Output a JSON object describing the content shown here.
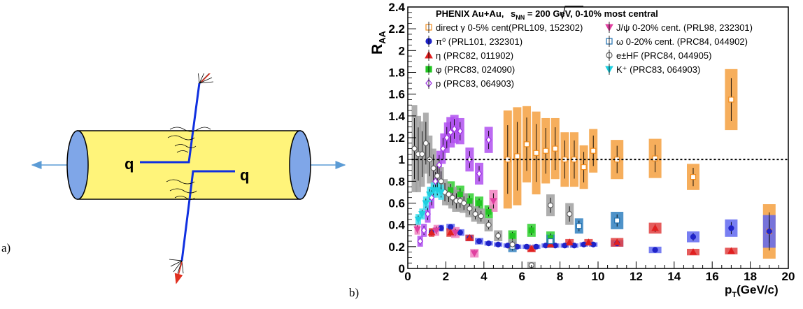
{
  "panel_labels": {
    "a": "a)",
    "b": "b)"
  },
  "diagram": {
    "quark_left": "q",
    "quark_right": "q"
  },
  "chart_data": {
    "type": "scatter",
    "title_prefix": "PHENIX   Au+Au,  ",
    "title_sqrt": "s",
    "title_sub": "NN",
    "title_suffix": " = 200 GeV, 0-10% most central",
    "ylabel_main": "R",
    "ylabel_sub": "AA",
    "xlabel_main": "p",
    "xlabel_sub": "T",
    "xlabel_unit": "(GeV/c)",
    "xlim": [
      0,
      20
    ],
    "ylim": [
      0,
      2.4
    ],
    "xticks": [
      "0",
      "2",
      "4",
      "6",
      "8",
      "10",
      "12",
      "14",
      "16",
      "18",
      "20"
    ],
    "yticks": [
      "0",
      "0.2",
      "0.4",
      "0.6",
      "0.8",
      "1",
      "1.2",
      "1.4",
      "1.6",
      "1.8",
      "2",
      "2.2",
      "2.4"
    ],
    "legend": [
      {
        "label": "direct γ 0-5% cent(PRL109, 152302)",
        "color": "#f08c1e",
        "marker": "open-square"
      },
      {
        "label": "π⁰ (PRL101, 232301)",
        "color": "#1f23c8",
        "marker": "circle"
      },
      {
        "label": "η (PRC82, 011902)",
        "color": "#e02020",
        "marker": "triangle-up"
      },
      {
        "label": "φ (PRC83, 024090)",
        "color": "#22c422",
        "marker": "square"
      },
      {
        "label": "p (PRC83, 064903)",
        "color": "#9b30e0",
        "marker": "open-diamond"
      },
      {
        "label": "J/ψ 0-20% cent. (PRL98, 232301)",
        "color": "#e040a0",
        "marker": "triangle-down"
      },
      {
        "label": "ω 0-20% cent. (PRC84, 044902)",
        "color": "#2070b0",
        "marker": "open-square"
      },
      {
        "label": "e±HF (PRC84, 044905)",
        "color": "#606060",
        "marker": "open-circle"
      },
      {
        "label": "K⁺ (PRC83, 064903)",
        "color": "#20d0e0",
        "marker": "triangle-down"
      }
    ],
    "reference_line_y": 1,
    "series": [
      {
        "name": "direct γ",
        "color": "#f08c1e",
        "band": "#f5a040",
        "x": [
          5.25,
          5.75,
          6.25,
          6.75,
          7.25,
          7.75,
          8.25,
          8.75,
          9.25,
          9.75,
          11,
          13,
          15,
          17,
          19
        ],
        "y": [
          1.0,
          1.03,
          1.14,
          1.06,
          1.08,
          1.1,
          1.0,
          1.0,
          0.93,
          1.08,
          1.0,
          1.01,
          0.84,
          1.55,
          0.34
        ],
        "sys": [
          0.45,
          0.45,
          0.35,
          0.38,
          0.3,
          0.28,
          0.25,
          0.25,
          0.2,
          0.2,
          0.18,
          0.18,
          0.12,
          0.28,
          0.25
        ]
      },
      {
        "name": "π⁰",
        "color": "#1f23c8",
        "band": "#6068f0",
        "x": [
          1.25,
          1.75,
          2.25,
          2.75,
          3.25,
          3.75,
          4.25,
          4.75,
          5.25,
          5.75,
          6.25,
          6.75,
          7.25,
          7.75,
          8.25,
          8.75,
          9.25,
          9.75,
          11,
          13,
          15,
          17,
          19
        ],
        "y": [
          0.33,
          0.37,
          0.38,
          0.33,
          0.28,
          0.25,
          0.23,
          0.22,
          0.21,
          0.2,
          0.2,
          0.2,
          0.21,
          0.21,
          0.21,
          0.21,
          0.22,
          0.22,
          0.23,
          0.17,
          0.29,
          0.37,
          0.34
        ],
        "sys": [
          0.03,
          0.03,
          0.03,
          0.03,
          0.03,
          0.03,
          0.02,
          0.02,
          0.02,
          0.02,
          0.02,
          0.02,
          0.02,
          0.02,
          0.02,
          0.02,
          0.02,
          0.02,
          0.03,
          0.03,
          0.05,
          0.08,
          0.15
        ]
      },
      {
        "name": "η",
        "color": "#e02020",
        "band": "#e04040",
        "x": [
          1.25,
          2.25,
          3.25,
          5.5,
          6.5,
          7.5,
          8.5,
          9.5,
          11,
          13,
          15,
          17
        ],
        "y": [
          0.33,
          0.33,
          0.28,
          0.21,
          0.18,
          0.22,
          0.24,
          0.24,
          0.24,
          0.37,
          0.15,
          0.16
        ],
        "sys": [
          0.04,
          0.04,
          0.03,
          0.03,
          0.03,
          0.03,
          0.03,
          0.03,
          0.04,
          0.05,
          0.03,
          0.03
        ]
      },
      {
        "name": "φ",
        "color": "#22c422",
        "band": "#30d030",
        "x": [
          2.25,
          2.75,
          3.25,
          3.75,
          4.25,
          5.5,
          6.5,
          7.5
        ],
        "y": [
          0.72,
          0.68,
          0.62,
          0.6,
          0.52,
          0.3,
          0.35,
          0.28
        ],
        "sys": [
          0.08,
          0.08,
          0.07,
          0.06,
          0.06,
          0.05,
          0.06,
          0.06
        ]
      },
      {
        "name": "p",
        "color": "#9b30e0",
        "band": "#b050f0",
        "x": [
          0.65,
          0.85,
          1.05,
          1.25,
          1.45,
          1.65,
          1.85,
          2.05,
          2.25,
          2.45,
          2.75,
          3.25,
          3.75,
          4.25
        ],
        "y": [
          0.25,
          0.35,
          0.5,
          0.65,
          0.8,
          0.95,
          1.1,
          1.2,
          1.25,
          1.28,
          1.26,
          1.0,
          0.87,
          1.18
        ],
        "sys": [
          0.05,
          0.06,
          0.08,
          0.1,
          0.12,
          0.13,
          0.14,
          0.14,
          0.14,
          0.13,
          0.12,
          0.11,
          0.1,
          0.12
        ]
      },
      {
        "name": "J/ψ",
        "color": "#e040a0",
        "band": "#f080c0",
        "x": [
          0.5,
          1.5,
          2.5,
          3.5,
          4.5
        ],
        "y": [
          0.36,
          0.35,
          0.33,
          0.14,
          0.62
        ],
        "sys": [
          0.05,
          0.05,
          0.05,
          0.04,
          0.1
        ]
      },
      {
        "name": "ω",
        "color": "#2070b0",
        "band": "#3080c0",
        "x": [
          5.5,
          7.5,
          9,
          11
        ],
        "y": [
          0.2,
          0.25,
          0.39,
          0.44
        ],
        "sys": [
          0.05,
          0.06,
          0.07,
          0.08
        ]
      },
      {
        "name": "e±HF",
        "color": "#606060",
        "band": "#a0a0a0",
        "x": [
          0.35,
          0.55,
          0.75,
          0.95,
          1.15,
          1.35,
          1.55,
          1.75,
          1.95,
          2.15,
          2.35,
          2.55,
          2.75,
          2.95,
          3.25,
          3.55,
          3.85,
          4.25,
          4.75,
          5.5,
          6.5,
          7.5,
          8.5
        ],
        "y": [
          1.1,
          1.05,
          1.05,
          1.15,
          1.0,
          0.92,
          0.85,
          0.8,
          0.7,
          0.68,
          0.65,
          0.62,
          0.62,
          0.6,
          0.55,
          0.5,
          0.48,
          0.4,
          0.3,
          0.22,
          0.03,
          0.58,
          0.5
        ],
        "sys": [
          0.4,
          0.35,
          0.3,
          0.28,
          0.22,
          0.18,
          0.15,
          0.13,
          0.12,
          0.1,
          0.1,
          0.1,
          0.09,
          0.09,
          0.08,
          0.07,
          0.07,
          0.06,
          0.05,
          0.05,
          0.03,
          0.1,
          0.1
        ]
      },
      {
        "name": "K⁺",
        "color": "#20d0e0",
        "band": "#40e0f0",
        "x": [
          0.55,
          0.75,
          0.95,
          1.15,
          1.35,
          1.55,
          1.75
        ],
        "y": [
          0.45,
          0.5,
          0.6,
          0.68,
          0.72,
          0.72,
          0.7
        ],
        "sys": [
          0.05,
          0.05,
          0.06,
          0.07,
          0.07,
          0.07,
          0.07
        ]
      }
    ]
  }
}
